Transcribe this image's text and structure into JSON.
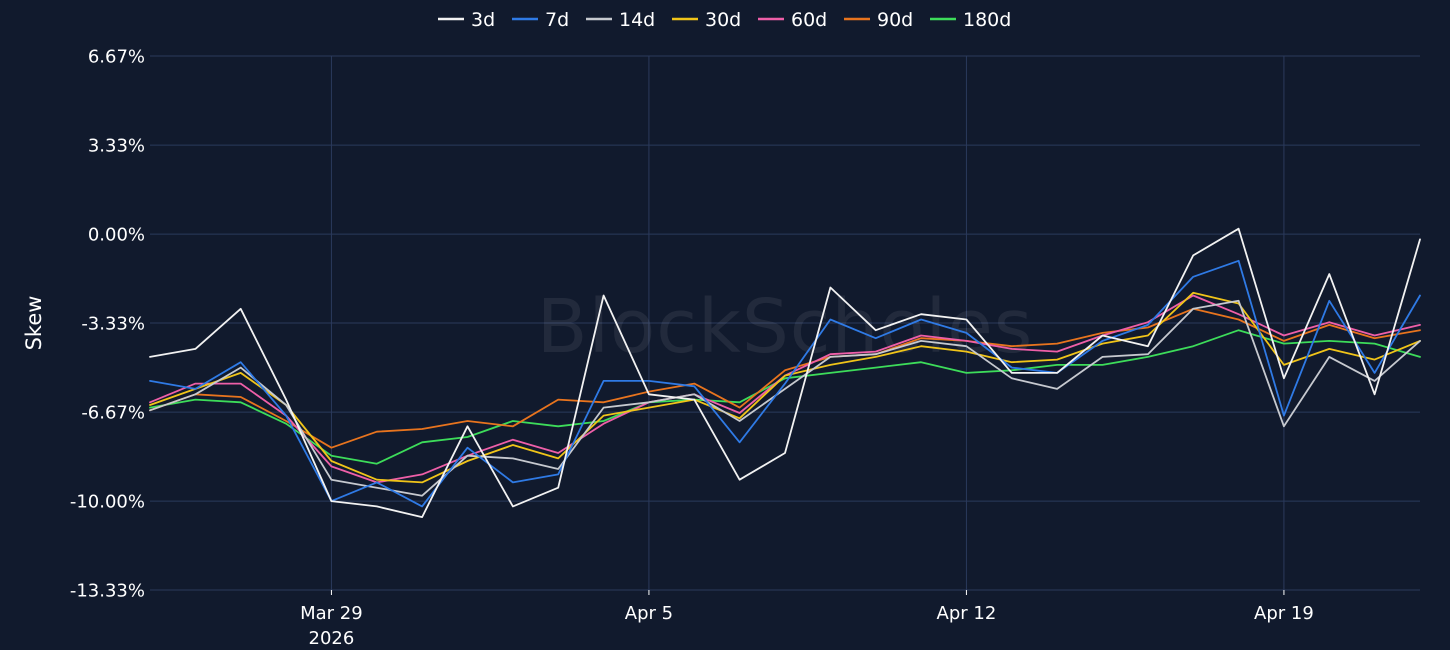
{
  "watermark": "BlockScholes",
  "chart_data": {
    "type": "line",
    "title": "",
    "ylabel": "Skew",
    "xlabel": "",
    "y_unit": "%",
    "ylim": [
      -13.33,
      6.67
    ],
    "y_ticks": [
      {
        "value": 6.67,
        "label": "6.67%"
      },
      {
        "value": 3.33,
        "label": "3.33%"
      },
      {
        "value": 0,
        "label": "0.00%"
      },
      {
        "value": -3.33,
        "label": "-3.33%"
      },
      {
        "value": -6.67,
        "label": "-6.67%"
      },
      {
        "value": -10,
        "label": "-10.00%"
      },
      {
        "value": -13.33,
        "label": "-13.33%"
      }
    ],
    "xlim": [
      "2026-03-25",
      "2026-04-22"
    ],
    "x_ticks": [
      {
        "value": "2026-03-29",
        "label": "Mar 29",
        "sublabel": "2026"
      },
      {
        "value": "2026-04-05",
        "label": "Apr 5",
        "sublabel": ""
      },
      {
        "value": "2026-04-12",
        "label": "Apr 12",
        "sublabel": ""
      },
      {
        "value": "2026-04-19",
        "label": "Apr 19",
        "sublabel": ""
      }
    ],
    "grid": true,
    "legend_position": "top",
    "series": [
      {
        "name": "3d",
        "color": "#f2f2f2",
        "x": [
          "2026-03-25",
          "2026-03-26",
          "2026-03-27",
          "2026-03-28",
          "2026-03-29",
          "2026-03-30",
          "2026-03-31",
          "2026-04-01",
          "2026-04-02",
          "2026-04-03",
          "2026-04-04",
          "2026-04-05",
          "2026-04-06",
          "2026-04-07",
          "2026-04-08",
          "2026-04-09",
          "2026-04-10",
          "2026-04-11",
          "2026-04-12",
          "2026-04-13",
          "2026-04-14",
          "2026-04-15",
          "2026-04-16",
          "2026-04-17",
          "2026-04-18",
          "2026-04-19",
          "2026-04-20",
          "2026-04-21",
          "2026-04-22"
        ],
        "y": [
          -4.6,
          -4.3,
          -2.8,
          -6.2,
          -10.0,
          -10.2,
          -10.6,
          -7.2,
          -10.2,
          -9.5,
          -2.3,
          -6.0,
          -6.2,
          -9.2,
          -8.2,
          -2.0,
          -3.6,
          -3.0,
          -3.2,
          -5.2,
          -5.2,
          -3.8,
          -4.2,
          -0.8,
          0.2,
          -5.4,
          -1.5,
          -6.0,
          -0.2
        ]
      },
      {
        "name": "7d",
        "color": "#2f7ae5",
        "x": [
          "2026-03-25",
          "2026-03-26",
          "2026-03-27",
          "2026-03-28",
          "2026-03-29",
          "2026-03-30",
          "2026-03-31",
          "2026-04-01",
          "2026-04-02",
          "2026-04-03",
          "2026-04-04",
          "2026-04-05",
          "2026-04-06",
          "2026-04-07",
          "2026-04-08",
          "2026-04-09",
          "2026-04-10",
          "2026-04-11",
          "2026-04-12",
          "2026-04-13",
          "2026-04-14",
          "2026-04-15",
          "2026-04-16",
          "2026-04-17",
          "2026-04-18",
          "2026-04-19",
          "2026-04-20",
          "2026-04-21",
          "2026-04-22"
        ],
        "y": [
          -5.5,
          -5.8,
          -4.8,
          -6.8,
          -10.0,
          -9.3,
          -10.2,
          -8.0,
          -9.3,
          -9.0,
          -5.5,
          -5.5,
          -5.7,
          -7.8,
          -5.6,
          -3.2,
          -3.9,
          -3.2,
          -3.7,
          -5.0,
          -5.2,
          -4.0,
          -3.4,
          -1.6,
          -1.0,
          -6.8,
          -2.5,
          -5.2,
          -2.3
        ]
      },
      {
        "name": "14d",
        "color": "#c6c9cf",
        "x": [
          "2026-03-25",
          "2026-03-26",
          "2026-03-27",
          "2026-03-28",
          "2026-03-29",
          "2026-03-30",
          "2026-03-31",
          "2026-04-01",
          "2026-04-02",
          "2026-04-03",
          "2026-04-04",
          "2026-04-05",
          "2026-04-06",
          "2026-04-07",
          "2026-04-08",
          "2026-04-09",
          "2026-04-10",
          "2026-04-11",
          "2026-04-12",
          "2026-04-13",
          "2026-04-14",
          "2026-04-15",
          "2026-04-16",
          "2026-04-17",
          "2026-04-18",
          "2026-04-19",
          "2026-04-20",
          "2026-04-21",
          "2026-04-22"
        ],
        "y": [
          -6.6,
          -6.0,
          -5.0,
          -6.4,
          -9.2,
          -9.5,
          -9.8,
          -8.3,
          -8.4,
          -8.8,
          -6.5,
          -6.3,
          -6.0,
          -7.0,
          -5.8,
          -4.6,
          -4.5,
          -4.0,
          -4.2,
          -5.4,
          -5.8,
          -4.6,
          -4.5,
          -2.8,
          -2.5,
          -7.2,
          -4.6,
          -5.5,
          -4.0
        ]
      },
      {
        "name": "30d",
        "color": "#f0c419",
        "x": [
          "2026-03-25",
          "2026-03-26",
          "2026-03-27",
          "2026-03-28",
          "2026-03-29",
          "2026-03-30",
          "2026-03-31",
          "2026-04-01",
          "2026-04-02",
          "2026-04-03",
          "2026-04-04",
          "2026-04-05",
          "2026-04-06",
          "2026-04-07",
          "2026-04-08",
          "2026-04-09",
          "2026-04-10",
          "2026-04-11",
          "2026-04-12",
          "2026-04-13",
          "2026-04-14",
          "2026-04-15",
          "2026-04-16",
          "2026-04-17",
          "2026-04-18",
          "2026-04-19",
          "2026-04-20",
          "2026-04-21",
          "2026-04-22"
        ],
        "y": [
          -6.4,
          -5.8,
          -5.2,
          -6.4,
          -8.5,
          -9.2,
          -9.3,
          -8.5,
          -7.9,
          -8.4,
          -6.8,
          -6.5,
          -6.2,
          -6.9,
          -5.3,
          -4.9,
          -4.6,
          -4.2,
          -4.4,
          -4.8,
          -4.7,
          -4.1,
          -3.8,
          -2.2,
          -2.6,
          -4.9,
          -4.3,
          -4.7,
          -4.0
        ]
      },
      {
        "name": "60d",
        "color": "#ee5fa8",
        "x": [
          "2026-03-25",
          "2026-03-26",
          "2026-03-27",
          "2026-03-28",
          "2026-03-29",
          "2026-03-30",
          "2026-03-31",
          "2026-04-01",
          "2026-04-02",
          "2026-04-03",
          "2026-04-04",
          "2026-04-05",
          "2026-04-06",
          "2026-04-07",
          "2026-04-08",
          "2026-04-09",
          "2026-04-10",
          "2026-04-11",
          "2026-04-12",
          "2026-04-13",
          "2026-04-14",
          "2026-04-15",
          "2026-04-16",
          "2026-04-17",
          "2026-04-18",
          "2026-04-19",
          "2026-04-20",
          "2026-04-21",
          "2026-04-22"
        ],
        "y": [
          -6.3,
          -5.6,
          -5.6,
          -6.8,
          -8.7,
          -9.3,
          -9.0,
          -8.3,
          -7.7,
          -8.2,
          -7.1,
          -6.3,
          -6.0,
          -6.7,
          -5.3,
          -4.5,
          -4.4,
          -3.8,
          -4.0,
          -4.3,
          -4.4,
          -3.8,
          -3.3,
          -2.3,
          -3.0,
          -3.8,
          -3.3,
          -3.8,
          -3.4
        ]
      },
      {
        "name": "90d",
        "color": "#e8741e",
        "x": [
          "2026-03-25",
          "2026-03-26",
          "2026-03-27",
          "2026-03-28",
          "2026-03-29",
          "2026-03-30",
          "2026-03-31",
          "2026-04-01",
          "2026-04-02",
          "2026-04-03",
          "2026-04-04",
          "2026-04-05",
          "2026-04-06",
          "2026-04-07",
          "2026-04-08",
          "2026-04-09",
          "2026-04-10",
          "2026-04-11",
          "2026-04-12",
          "2026-04-13",
          "2026-04-14",
          "2026-04-15",
          "2026-04-16",
          "2026-04-17",
          "2026-04-18",
          "2026-04-19",
          "2026-04-20",
          "2026-04-21",
          "2026-04-22"
        ],
        "y": [
          -6.6,
          -6.0,
          -6.1,
          -7.0,
          -8.0,
          -7.4,
          -7.3,
          -7.0,
          -7.2,
          -6.2,
          -6.3,
          -5.9,
          -5.6,
          -6.5,
          -5.1,
          -4.6,
          -4.5,
          -3.9,
          -4.0,
          -4.2,
          -4.1,
          -3.7,
          -3.5,
          -2.8,
          -3.2,
          -4.0,
          -3.4,
          -3.9,
          -3.6
        ]
      },
      {
        "name": "180d",
        "color": "#3ddc5a",
        "x": [
          "2026-03-25",
          "2026-03-26",
          "2026-03-27",
          "2026-03-28",
          "2026-03-29",
          "2026-03-30",
          "2026-03-31",
          "2026-04-01",
          "2026-04-02",
          "2026-04-03",
          "2026-04-04",
          "2026-04-05",
          "2026-04-06",
          "2026-04-07",
          "2026-04-08",
          "2026-04-09",
          "2026-04-10",
          "2026-04-11",
          "2026-04-12",
          "2026-04-13",
          "2026-04-14",
          "2026-04-15",
          "2026-04-16",
          "2026-04-17",
          "2026-04-18",
          "2026-04-19",
          "2026-04-20",
          "2026-04-21",
          "2026-04-22"
        ],
        "y": [
          -6.5,
          -6.2,
          -6.3,
          -7.1,
          -8.3,
          -8.6,
          -7.8,
          -7.6,
          -7.0,
          -7.2,
          -7.0,
          -6.3,
          -6.2,
          -6.3,
          -5.4,
          -5.2,
          -5.0,
          -4.8,
          -5.2,
          -5.1,
          -4.9,
          -4.9,
          -4.6,
          -4.2,
          -3.6,
          -4.1,
          -4.0,
          -4.1,
          -4.6
        ]
      }
    ]
  }
}
